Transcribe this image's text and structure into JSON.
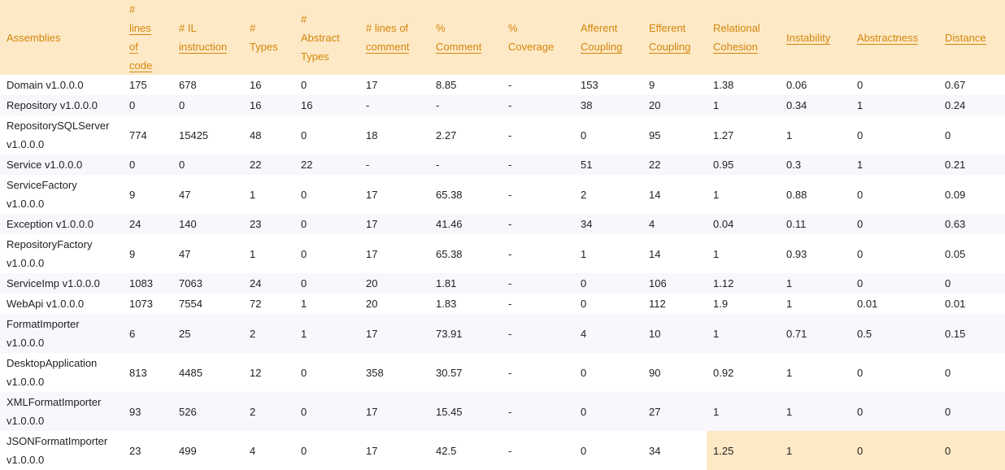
{
  "colors": {
    "header_bg": "#fde9c6",
    "header_text": "#d4860b",
    "row_alt": "#f7f7fc",
    "highlight": "#fde9c6"
  },
  "headers": [
    {
      "l1": "Assemblies",
      "l2": "",
      "l3": "",
      "l4": ""
    },
    {
      "l1": "#",
      "l2": "lines",
      "l3": "of",
      "l4": "code"
    },
    {
      "l1": "# IL",
      "l2": "instruction",
      "l3": "",
      "l4": ""
    },
    {
      "l1": "#",
      "l2": "Types",
      "l3": "",
      "l4": ""
    },
    {
      "l1": "#",
      "l2": "Abstract",
      "l3": "Types",
      "l4": ""
    },
    {
      "l1": "# lines of",
      "l2": "comment",
      "l3": "",
      "l4": ""
    },
    {
      "l1": "%",
      "l2": "Comment",
      "l3": "",
      "l4": ""
    },
    {
      "l1": "%",
      "l2": "Coverage",
      "l3": "",
      "l4": ""
    },
    {
      "l1": "Afferent",
      "l2": "Coupling",
      "l3": "",
      "l4": ""
    },
    {
      "l1": "Efferent",
      "l2": "Coupling",
      "l3": "",
      "l4": ""
    },
    {
      "l1": "Relational",
      "l2": "Cohesion",
      "l3": "",
      "l4": ""
    },
    {
      "l1": "Instability",
      "l2": "",
      "l3": "",
      "l4": ""
    },
    {
      "l1": "Abstractness",
      "l2": "",
      "l3": "",
      "l4": ""
    },
    {
      "l1": "Distance",
      "l2": "",
      "l3": "",
      "l4": ""
    }
  ],
  "rows": [
    {
      "name1": "Domain v1.0.0.0",
      "name2": "",
      "c": [
        "175",
        "678",
        "16",
        "0",
        "17",
        "8.85",
        "-",
        "153",
        "9",
        "1.38",
        "0.06",
        "0",
        "0.67"
      ]
    },
    {
      "name1": "Repository v1.0.0.0",
      "name2": "",
      "c": [
        "0",
        "0",
        "16",
        "16",
        "-",
        "-",
        "-",
        "38",
        "20",
        "1",
        "0.34",
        "1",
        "0.24"
      ]
    },
    {
      "name1": "RepositorySQLServer",
      "name2": "v1.0.0.0",
      "c": [
        "774",
        "15425",
        "48",
        "0",
        "18",
        "2.27",
        "-",
        "0",
        "95",
        "1.27",
        "1",
        "0",
        "0"
      ]
    },
    {
      "name1": "Service v1.0.0.0",
      "name2": "",
      "c": [
        "0",
        "0",
        "22",
        "22",
        "-",
        "-",
        "-",
        "51",
        "22",
        "0.95",
        "0.3",
        "1",
        "0.21"
      ]
    },
    {
      "name1": "ServiceFactory",
      "name2": "v1.0.0.0",
      "c": [
        "9",
        "47",
        "1",
        "0",
        "17",
        "65.38",
        "-",
        "2",
        "14",
        "1",
        "0.88",
        "0",
        "0.09"
      ]
    },
    {
      "name1": "Exception v1.0.0.0",
      "name2": "",
      "c": [
        "24",
        "140",
        "23",
        "0",
        "17",
        "41.46",
        "-",
        "34",
        "4",
        "0.04",
        "0.11",
        "0",
        "0.63"
      ]
    },
    {
      "name1": "RepositoryFactory",
      "name2": "v1.0.0.0",
      "c": [
        "9",
        "47",
        "1",
        "0",
        "17",
        "65.38",
        "-",
        "1",
        "14",
        "1",
        "0.93",
        "0",
        "0.05"
      ]
    },
    {
      "name1": "ServiceImp v1.0.0.0",
      "name2": "",
      "c": [
        "1083",
        "7063",
        "24",
        "0",
        "20",
        "1.81",
        "-",
        "0",
        "106",
        "1.12",
        "1",
        "0",
        "0"
      ]
    },
    {
      "name1": "WebApi v1.0.0.0",
      "name2": "",
      "c": [
        "1073",
        "7554",
        "72",
        "1",
        "20",
        "1.83",
        "-",
        "0",
        "112",
        "1.9",
        "1",
        "0.01",
        "0.01"
      ]
    },
    {
      "name1": "FormatImporter",
      "name2": "v1.0.0.0",
      "c": [
        "6",
        "25",
        "2",
        "1",
        "17",
        "73.91",
        "-",
        "4",
        "10",
        "1",
        "0.71",
        "0.5",
        "0.15"
      ]
    },
    {
      "name1": "DesktopApplication",
      "name2": "v1.0.0.0",
      "c": [
        "813",
        "4485",
        "12",
        "0",
        "358",
        "30.57",
        "-",
        "0",
        "90",
        "0.92",
        "1",
        "0",
        "0"
      ]
    },
    {
      "name1": "XMLFormatImporter",
      "name2": "v1.0.0.0",
      "c": [
        "93",
        "526",
        "2",
        "0",
        "17",
        "15.45",
        "-",
        "0",
        "27",
        "1",
        "1",
        "0",
        "0"
      ]
    },
    {
      "name1": "JSONFormatImporter",
      "name2": "v1.0.0.0",
      "c": [
        "23",
        "499",
        "4",
        "0",
        "17",
        "42.5",
        "-",
        "0",
        "34",
        "1.25",
        "1",
        "0",
        "0"
      ]
    }
  ]
}
